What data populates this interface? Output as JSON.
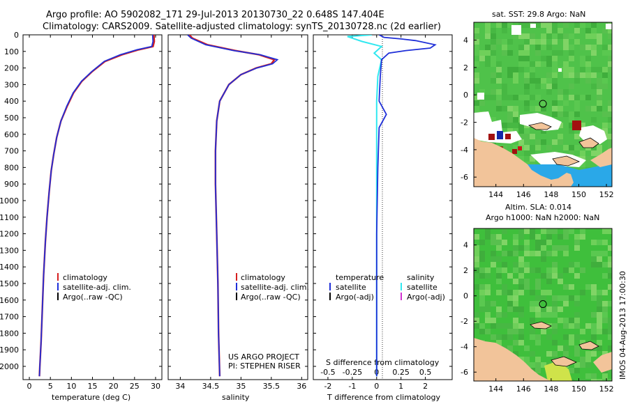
{
  "header": {
    "line1": "Argo profile: AO 5902082_171 29-Jul-2013 20130730_22 0.648S 147.404E",
    "line2": "Climatology: CARS2009. Satellite-adjusted climatology: synTS_20130728.nc (2d earlier)"
  },
  "colors": {
    "climatology": "#d62020",
    "satellite": "#1f2fd8",
    "argo": "#000000",
    "satellite_salinity": "#30e8f0",
    "argo_adj_salinity": "#d030d0",
    "land": "#f2c49a",
    "sst_green": "#4fc24a",
    "sla_green": "#3fbf3c"
  },
  "chart_data": [
    {
      "type": "line",
      "name": "temperature-profile",
      "xlabel": "temperature (deg C)",
      "ylabel": "",
      "xlim": [
        -1.5,
        31.5
      ],
      "ylim": [
        2080,
        0
      ],
      "xticks": [
        "0",
        "5",
        "10",
        "15",
        "20",
        "25",
        "30"
      ],
      "xtick_values": [
        0,
        5,
        10,
        15,
        20,
        25,
        30
      ],
      "yticks": [
        "0",
        "100",
        "200",
        "300",
        "400",
        "500",
        "600",
        "700",
        "800",
        "900",
        "1000",
        "1100",
        "1200",
        "1300",
        "1400",
        "1500",
        "1600",
        "1700",
        "1800",
        "1900",
        "2000"
      ],
      "ytick_values": [
        0,
        100,
        200,
        300,
        400,
        500,
        600,
        700,
        800,
        900,
        1000,
        1100,
        1200,
        1300,
        1400,
        1500,
        1600,
        1700,
        1800,
        1900,
        2000
      ],
      "legend": [
        "climatology",
        "satellite-adj. clim.",
        "Argo(..raw -QC)"
      ],
      "series": [
        {
          "name": "climatology",
          "color_key": "climatology",
          "points": [
            [
              29.6,
              0
            ],
            [
              29.7,
              40
            ],
            [
              29.4,
              70
            ],
            [
              26,
              90
            ],
            [
              22,
              120
            ],
            [
              18,
              160
            ],
            [
              15,
              220
            ],
            [
              12.5,
              280
            ],
            [
              10.5,
              350
            ],
            [
              9,
              430
            ],
            [
              7.5,
              520
            ],
            [
              6.5,
              620
            ],
            [
              5.8,
              720
            ],
            [
              5.2,
              820
            ],
            [
              4.7,
              950
            ],
            [
              4.2,
              1100
            ],
            [
              3.8,
              1250
            ],
            [
              3.4,
              1450
            ],
            [
              3.1,
              1650
            ],
            [
              2.8,
              1850
            ],
            [
              2.5,
              2000
            ],
            [
              2.4,
              2060
            ]
          ]
        },
        {
          "name": "satellite-adj. clim.",
          "color_key": "satellite",
          "points": [
            [
              29.3,
              0
            ],
            [
              29.4,
              40
            ],
            [
              29.1,
              70
            ],
            [
              25.6,
              90
            ],
            [
              21.6,
              120
            ],
            [
              17.8,
              160
            ],
            [
              14.9,
              220
            ],
            [
              12.4,
              280
            ],
            [
              10.4,
              350
            ],
            [
              8.9,
              430
            ],
            [
              7.5,
              520
            ],
            [
              6.5,
              620
            ],
            [
              5.8,
              720
            ],
            [
              5.2,
              820
            ],
            [
              4.7,
              950
            ],
            [
              4.2,
              1100
            ],
            [
              3.8,
              1250
            ],
            [
              3.4,
              1450
            ],
            [
              3.1,
              1650
            ],
            [
              2.8,
              1850
            ],
            [
              2.5,
              2000
            ],
            [
              2.4,
              2060
            ]
          ]
        }
      ]
    },
    {
      "type": "line",
      "name": "salinity-profile",
      "xlabel": "salinity",
      "xlim": [
        33.8,
        36.1
      ],
      "ylim": [
        2080,
        0
      ],
      "xticks": [
        "34",
        "34.5",
        "35",
        "35.5",
        "36"
      ],
      "xtick_values": [
        34,
        34.5,
        35,
        35.5,
        36
      ],
      "legend": [
        "climatology",
        "satellite-adj. clim.",
        "Argo(..raw -QC)"
      ],
      "annotation": [
        "US ARGO PROJECT",
        "PI: STEPHEN RISER"
      ],
      "series": [
        {
          "name": "climatology",
          "color_key": "climatology",
          "points": [
            [
              34.15,
              0
            ],
            [
              34.2,
              20
            ],
            [
              34.45,
              60
            ],
            [
              34.9,
              95
            ],
            [
              35.3,
              120
            ],
            [
              35.55,
              150
            ],
            [
              35.5,
              175
            ],
            [
              35.25,
              200
            ],
            [
              35.0,
              240
            ],
            [
              34.8,
              300
            ],
            [
              34.65,
              400
            ],
            [
              34.6,
              520
            ],
            [
              34.58,
              700
            ],
            [
              34.58,
              900
            ],
            [
              34.6,
              1200
            ],
            [
              34.62,
              1500
            ],
            [
              34.63,
              1800
            ],
            [
              34.65,
              2060
            ]
          ]
        },
        {
          "name": "satellite-adj. clim.",
          "color_key": "satellite",
          "points": [
            [
              34.12,
              0
            ],
            [
              34.18,
              20
            ],
            [
              34.42,
              60
            ],
            [
              34.88,
              95
            ],
            [
              35.32,
              120
            ],
            [
              35.6,
              150
            ],
            [
              35.52,
              175
            ],
            [
              35.26,
              200
            ],
            [
              35.0,
              240
            ],
            [
              34.8,
              300
            ],
            [
              34.65,
              400
            ],
            [
              34.6,
              520
            ],
            [
              34.58,
              700
            ],
            [
              34.58,
              900
            ],
            [
              34.6,
              1200
            ],
            [
              34.62,
              1500
            ],
            [
              34.63,
              1800
            ],
            [
              34.65,
              2060
            ]
          ]
        }
      ]
    },
    {
      "type": "line",
      "name": "difference-profile",
      "xlabel": "T difference from climatology",
      "xlabel2": "S difference from climatology",
      "xlim": [
        -2.6,
        3.1
      ],
      "ylim": [
        2080,
        0
      ],
      "xticks": [
        "-2",
        "-1",
        "0",
        "1",
        "2"
      ],
      "xtick_values": [
        -2,
        -1,
        0,
        1,
        2
      ],
      "sticks": [
        "-0.5",
        "-0.25",
        "0",
        "0.25",
        "0.5"
      ],
      "stick_values": [
        -2,
        -1,
        0,
        1,
        2
      ],
      "legend": {
        "temperature_heading": "temperature",
        "salinity_heading": "salinity",
        "temperature_items": [
          "satellite",
          "Argo(-adj)"
        ],
        "salinity_items": [
          "satellite",
          "Argo(-adj)"
        ]
      },
      "series": [
        {
          "name": "temperature satellite",
          "color_key": "satellite",
          "points": [
            [
              0.1,
              0
            ],
            [
              0.3,
              15
            ],
            [
              1.0,
              25
            ],
            [
              1.6,
              35
            ],
            [
              2.4,
              60
            ],
            [
              2.2,
              80
            ],
            [
              1.2,
              95
            ],
            [
              0.5,
              110
            ],
            [
              0.2,
              150
            ],
            [
              0.15,
              250
            ],
            [
              0.1,
              400
            ],
            [
              0.4,
              480
            ],
            [
              0.1,
              560
            ],
            [
              0.05,
              800
            ],
            [
              0,
              1200
            ],
            [
              0,
              2060
            ]
          ]
        },
        {
          "name": "salinity satellite",
          "color_key": "satellite_salinity",
          "points": [
            [
              -0.2,
              0
            ],
            [
              -1.2,
              10
            ],
            [
              -0.6,
              40
            ],
            [
              0.2,
              70
            ],
            [
              -0.1,
              110
            ],
            [
              0.2,
              150
            ],
            [
              0.05,
              250
            ],
            [
              0,
              400
            ],
            [
              0,
              800
            ],
            [
              0,
              1500
            ],
            [
              0,
              2060
            ]
          ]
        }
      ]
    }
  ],
  "maps": {
    "sst": {
      "title": "sat. SST: 29.8 Argo: NaN",
      "xticks": [
        "144",
        "146",
        "148",
        "150",
        "152"
      ],
      "xtick_values": [
        144,
        146,
        148,
        150,
        152
      ],
      "yticks": [
        "4",
        "2",
        "0",
        "-2",
        "-4",
        "-6"
      ],
      "ytick_values": [
        4,
        2,
        0,
        -2,
        -4,
        -6
      ],
      "xlim": [
        142.4,
        152.4
      ],
      "ylim": [
        -6.7,
        5.3
      ],
      "float_lon": 147.404,
      "float_lat": -0.648
    },
    "sla": {
      "title1": "Altim. SLA: 0.014",
      "title2": "Argo h1000: NaN h2000: NaN",
      "xticks": [
        "144",
        "146",
        "148",
        "150",
        "152"
      ],
      "xtick_values": [
        144,
        146,
        148,
        150,
        152
      ],
      "yticks": [
        "4",
        "2",
        "0",
        "-2",
        "-4",
        "-6"
      ],
      "ytick_values": [
        4,
        2,
        0,
        -2,
        -4,
        -6
      ],
      "xlim": [
        142.4,
        152.4
      ],
      "ylim": [
        -6.7,
        5.3
      ],
      "float_lon": 147.404,
      "float_lat": -0.648
    }
  },
  "footer": {
    "timestamp": "IMOS 04-Aug-2013 17:00:30"
  }
}
